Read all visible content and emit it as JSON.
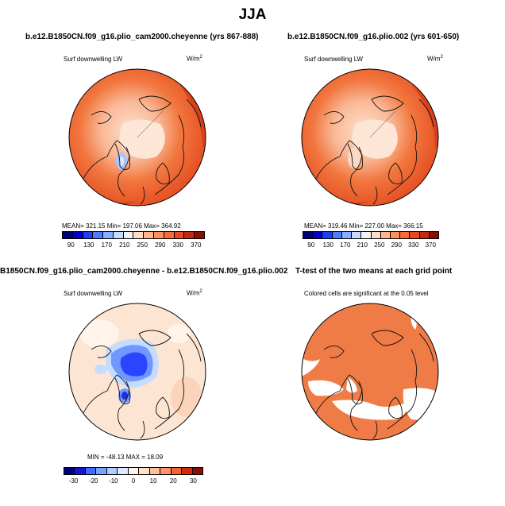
{
  "main_title": "JJA",
  "panels": [
    {
      "title": "b.e12.B1850CN.f09_g16.plio_cam2000.cheyenne (yrs 867-888)",
      "variable": "Surf downwelling LW",
      "units": "W/m",
      "units_exp": "2",
      "stats": "MEAN= 321.15   Min= 197.06   Max= 364.92",
      "colorbar_ticks": [
        "90",
        "130",
        "170",
        "210",
        "250",
        "290",
        "330",
        "370"
      ]
    },
    {
      "title": "b.e12.B1850CN.f09_g16.plio.002 (yrs 601-650)",
      "variable": "Surf downwelling LW",
      "units": "W/m",
      "units_exp": "2",
      "stats": "MEAN= 319.46   Min= 227.00   Max= 366.15",
      "colorbar_ticks": [
        "90",
        "130",
        "170",
        "210",
        "250",
        "290",
        "330",
        "370"
      ]
    },
    {
      "title": "B1850CN.f09_g16.plio_cam2000.cheyenne - b.e12.B1850CN.f09_g16.plio.002",
      "variable": "Surf downwelling LW",
      "units": "W/m",
      "units_exp": "2",
      "stats": "MIN = -48.13  MAX =  18.09",
      "colorbar_ticks": [
        "-30",
        "-20",
        "-10",
        "0",
        "10",
        "20",
        "30"
      ]
    },
    {
      "title": "T-test of the two means at each grid point",
      "variable": "Colored cells are significant at the 0.05 level"
    }
  ],
  "colors": {
    "abs_scale": [
      "#00007f",
      "#0000c8",
      "#1a3fff",
      "#4a7dff",
      "#86afff",
      "#c4dcff",
      "#f2f2f2",
      "#ffdcc4",
      "#ffb68f",
      "#ff8f5f",
      "#fa6a3a",
      "#e8471f",
      "#c42a0e",
      "#8a0f00"
    ],
    "diff_scale": [
      "#00007f",
      "#1414d6",
      "#3f6cff",
      "#78a2ff",
      "#b4ccff",
      "#dfe9ff",
      "#fff5ec",
      "#ffe1c8",
      "#ffc09a",
      "#ff9468",
      "#f36433",
      "#cf2b0c",
      "#8a0f00"
    ],
    "map_ocean_abs": "#ef5a2a",
    "map_mid_abs": "#f7a57d",
    "map_light_abs": "#fde0cc",
    "map_ocean_diff": "#fde5d3",
    "map_blue_core": "#2945ff",
    "map_blue_mid": "#6f97ff",
    "ttest_fill": "#ef7b46"
  }
}
